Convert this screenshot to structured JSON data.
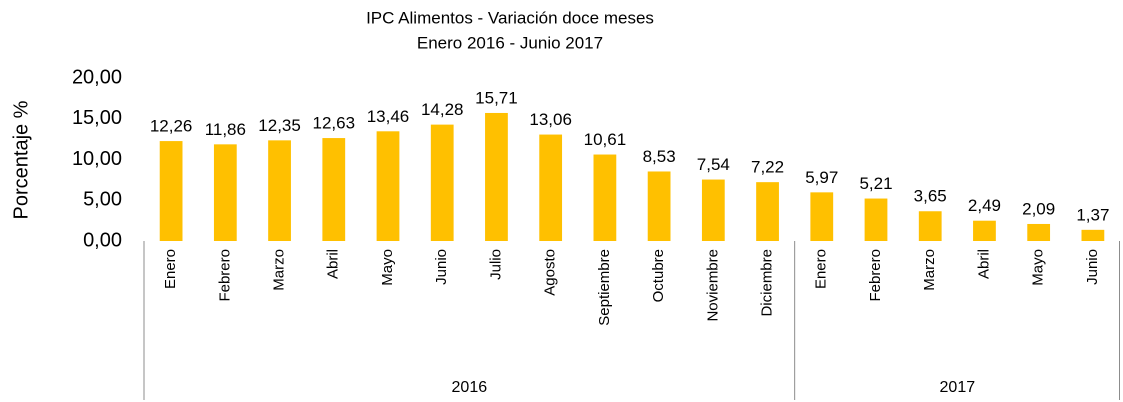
{
  "chart_data": {
    "type": "bar",
    "title": "IPC Alimentos - Variación doce meses",
    "subtitle": "Enero 2016 - Junio 2017",
    "y_label": "Porcentaje %",
    "color": "#ffc000",
    "groups": [
      {
        "label": "2016",
        "categories": [
          "Enero",
          "Febrero",
          "Marzo",
          "Abril",
          "Mayo",
          "Junio",
          "Julio",
          "Agosto",
          "Septiembre",
          "Octubre",
          "Noviembre",
          "Diciembre"
        ],
        "values": [
          12.26,
          11.86,
          12.35,
          12.63,
          13.46,
          14.28,
          15.71,
          13.06,
          10.61,
          8.53,
          7.54,
          7.22
        ],
        "value_labels": [
          "12,26",
          "11,86",
          "12,35",
          "12,63",
          "13,46",
          "14,28",
          "15,71",
          "13,06",
          "10,61",
          "8,53",
          "7,54",
          "7,22"
        ]
      },
      {
        "label": "2017",
        "categories": [
          "Enero",
          "Febrero",
          "Marzo",
          "Abril",
          "Mayo",
          "Junio"
        ],
        "values": [
          5.97,
          5.21,
          3.65,
          2.49,
          2.09,
          1.37
        ],
        "value_labels": [
          "5,97",
          "5,21",
          "3,65",
          "2,49",
          "2,09",
          "1,37"
        ]
      }
    ],
    "ylim": [
      0,
      20
    ],
    "yticks": [
      {
        "value": 0,
        "label": "0,00"
      },
      {
        "value": 5,
        "label": "5,00"
      },
      {
        "value": 10,
        "label": "10,00"
      },
      {
        "value": 15,
        "label": "15,00"
      },
      {
        "value": 20,
        "label": "20,00"
      }
    ],
    "grid": false
  }
}
